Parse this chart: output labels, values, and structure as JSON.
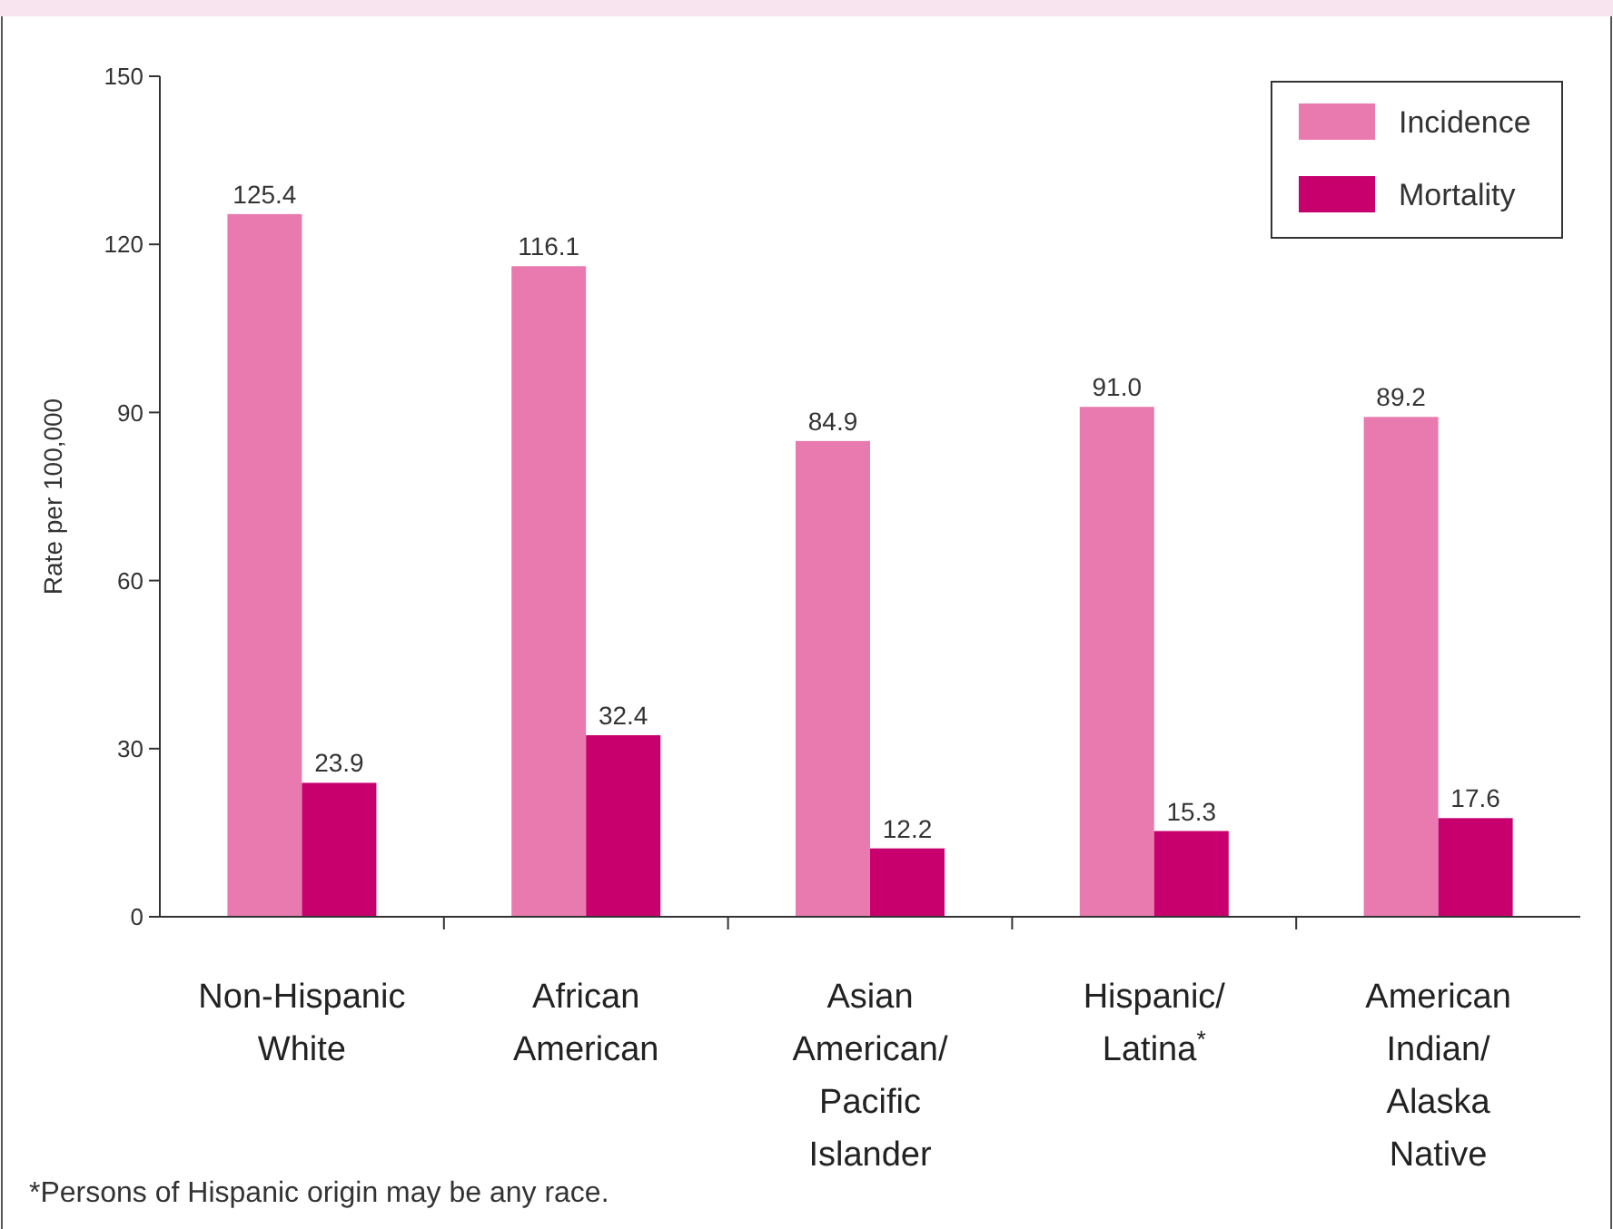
{
  "chart_data": {
    "type": "bar",
    "ylabel": "Rate per 100,000",
    "categories": [
      "Non-Hispanic\nWhite",
      "African\nAmerican",
      "Asian\nAmerican/\nPacific\nIslander",
      "Hispanic/\nLatina$^{*}$",
      "American\nIndian/\nAlaska\nNative"
    ],
    "series": [
      {
        "name": "Incidence",
        "color": "#e97aaf",
        "values": [
          125.4,
          116.1,
          84.9,
          91.0,
          89.2
        ],
        "value_labels": [
          "125.4",
          "116.1",
          "84.9",
          "91.0",
          "89.2"
        ]
      },
      {
        "name": "Mortality",
        "color": "#c7006e",
        "values": [
          23.9,
          32.4,
          12.2,
          15.3,
          17.6
        ],
        "value_labels": [
          "23.9",
          "32.4",
          "12.2",
          "15.3",
          "17.6"
        ]
      }
    ],
    "ylim": [
      0,
      150
    ],
    "yticks": [
      0,
      30,
      60,
      90,
      120,
      150
    ],
    "grid": false,
    "legend": "top right",
    "annotations": [
      "*Persons of Hispanic origin may be any race."
    ]
  }
}
